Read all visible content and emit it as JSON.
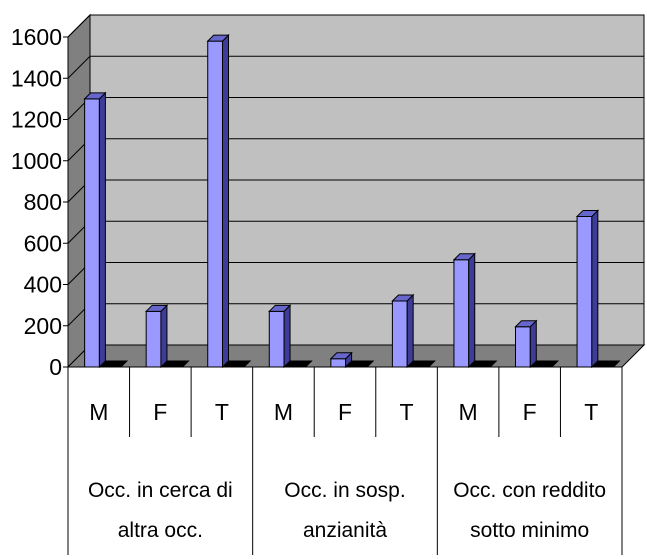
{
  "chart_data": {
    "type": "bar",
    "title": "",
    "xlabel": "",
    "ylabel": "",
    "ylim": [
      0,
      1600
    ],
    "yticks": [
      0,
      200,
      400,
      600,
      800,
      1000,
      1200,
      1400,
      1600
    ],
    "grid": true,
    "legend": "none",
    "categories": [
      "M",
      "F",
      "T",
      "M",
      "F",
      "T",
      "M",
      "F",
      "T"
    ],
    "groups": [
      {
        "label_lines": [
          "Occ. in cerca di",
          "altra occ."
        ],
        "subcategories": [
          "M",
          "F",
          "T"
        ]
      },
      {
        "label_lines": [
          "Occ. in sosp.",
          "anzianità"
        ],
        "subcategories": [
          "M",
          "F",
          "T"
        ]
      },
      {
        "label_lines": [
          "Occ. con reddito",
          "sotto minimo"
        ],
        "subcategories": [
          "M",
          "F",
          "T"
        ]
      }
    ],
    "series": [
      {
        "values": [
          1300,
          270,
          1580,
          270,
          40,
          320,
          520,
          195,
          730
        ]
      },
      {
        "values": [
          0,
          0,
          0,
          0,
          0,
          0,
          0,
          0,
          0
        ]
      }
    ],
    "colors": {
      "series1_front": "#9999ff",
      "series1_side": "#3d3d99",
      "series1_top": "#6666cc",
      "series2": "#000000",
      "plot_back": "#c0c0c0",
      "plot_side": "#808080",
      "plot_floor": "#808080",
      "grid": "#000000"
    }
  }
}
